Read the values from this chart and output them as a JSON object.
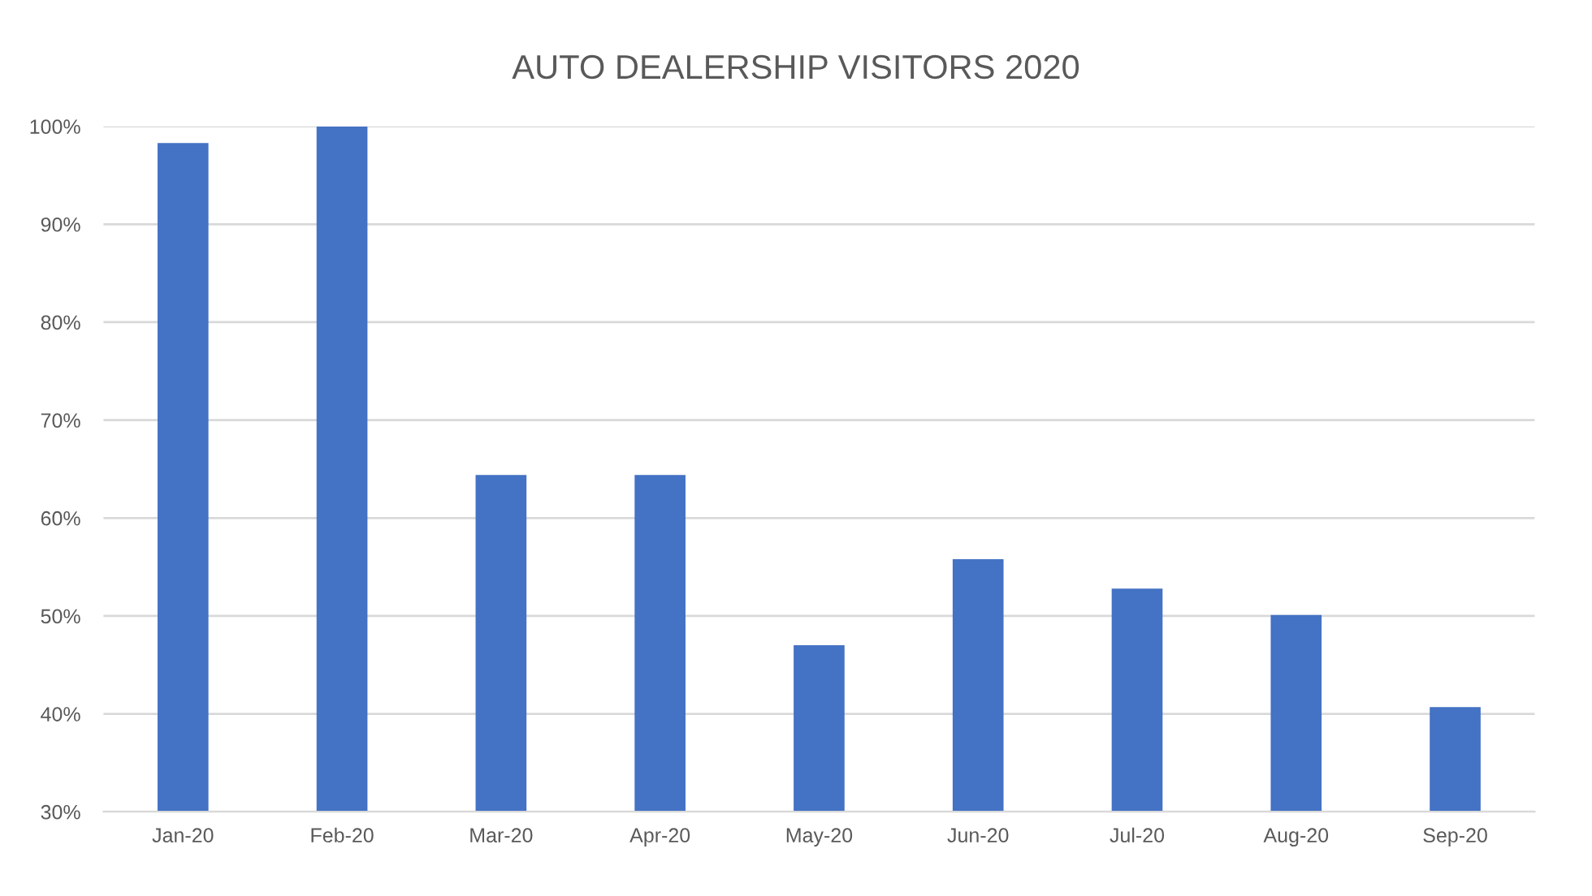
{
  "chart_data": {
    "type": "bar",
    "title": "AUTO DEALERSHIP VISITORS 2020",
    "categories": [
      "Jan-20",
      "Feb-20",
      "Mar-20",
      "Apr-20",
      "May-20",
      "Jun-20",
      "Jul-20",
      "Aug-20",
      "Sep-20"
    ],
    "values": [
      98.3,
      100,
      64.4,
      64.4,
      47.0,
      55.8,
      52.8,
      50.1,
      40.7
    ],
    "color": "#4472c4",
    "ylim": [
      30,
      100
    ],
    "yticks": [
      {
        "value": 30,
        "label": "30%"
      },
      {
        "value": 40,
        "label": "40%"
      },
      {
        "value": 50,
        "label": "50%"
      },
      {
        "value": 60,
        "label": "60%"
      },
      {
        "value": 70,
        "label": "70%"
      },
      {
        "value": 80,
        "label": "80%"
      },
      {
        "value": 90,
        "label": "90%"
      },
      {
        "value": 100,
        "label": "100%"
      }
    ],
    "grid": "y",
    "legend": false
  }
}
